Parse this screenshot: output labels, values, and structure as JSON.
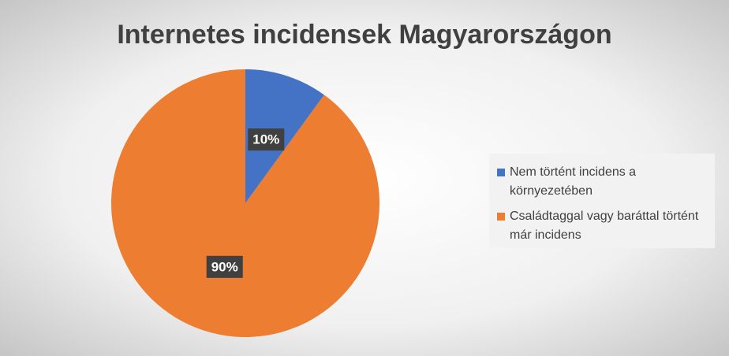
{
  "chart_data": {
    "type": "pie",
    "title": "Internetes incidensek Magyarországon",
    "categories": [
      "Nem történt incidens a környezetében",
      "Családtaggal vagy baráttal történt már incidens"
    ],
    "values": [
      10,
      90
    ],
    "value_labels": [
      "10%",
      "90%"
    ],
    "colors": [
      "#4472c4",
      "#ed7d31"
    ],
    "legend": "right"
  }
}
